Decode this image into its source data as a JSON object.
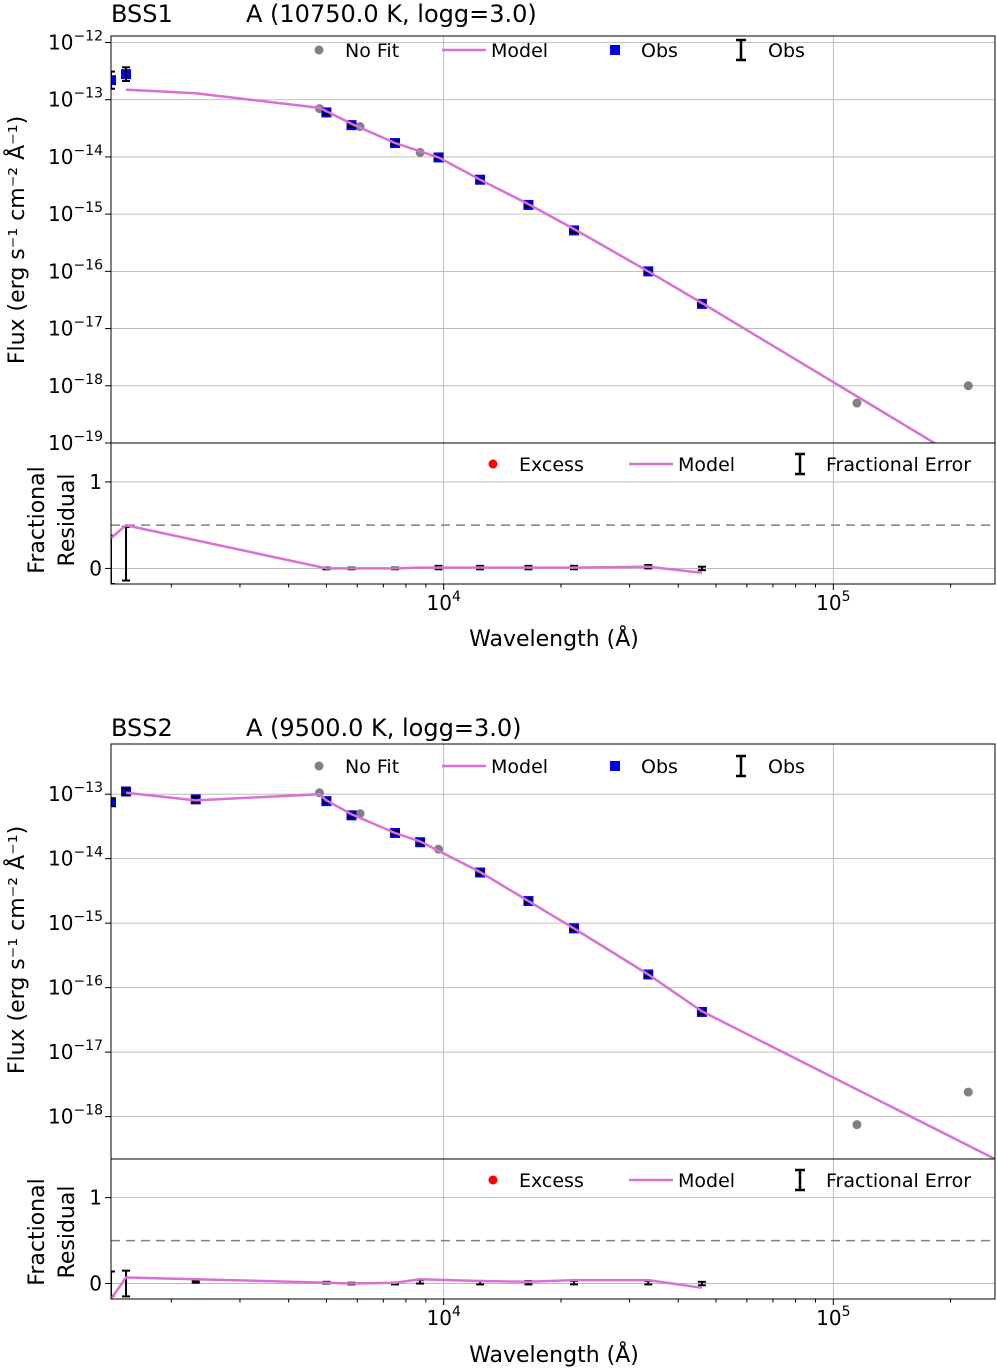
{
  "chart_data": [
    {
      "type": "scatter",
      "title_left": "BSS1",
      "title_right": "A (10750.0 K, logg=3.0)",
      "ylabel_top": "Flux (erg s⁻¹ cm⁻² Å⁻¹)",
      "ylabel_bottom_line1": "Fractional",
      "ylabel_bottom_line2": "Residual",
      "xlabel": "Wavelength (Å)",
      "x_scale": "log",
      "xlim": [
        1400,
        260000
      ],
      "xticks": [
        {
          "v": 10000,
          "exp": "4"
        },
        {
          "v": 100000,
          "exp": "5"
        }
      ],
      "top_panel": {
        "y_scale": "log",
        "ylim": [
          1e-19,
          1.3e-12
        ],
        "yticks": [
          {
            "v": 1e-12,
            "exp": "−12"
          },
          {
            "v": 1e-13,
            "exp": "−13"
          },
          {
            "v": 1e-14,
            "exp": "−14"
          },
          {
            "v": 1e-15,
            "exp": "−15"
          },
          {
            "v": 1e-16,
            "exp": "−16"
          },
          {
            "v": 1e-17,
            "exp": "−17"
          },
          {
            "v": 1e-18,
            "exp": "−18"
          },
          {
            "v": 1e-19,
            "exp": "−19"
          }
        ],
        "legend": [
          "No Fit",
          "Model",
          "Obs",
          "Obs"
        ],
        "model": {
          "x": [
            1530,
            2310,
            4800,
            5000,
            5800,
            7500,
            9700,
            12400,
            16500,
            21600,
            33500,
            46000,
            260000
          ],
          "y": [
            1.5e-13,
            1.3e-13,
            7.2e-14,
            6.3e-14,
            3.8e-14,
            1.75e-14,
            9.8e-15,
            4e-15,
            1.5e-15,
            5.5e-16,
            1e-16,
            2.8e-17,
            2.3e-20
          ]
        },
        "obs": {
          "x": [
            1400,
            1530,
            5000,
            5800,
            7500,
            9700,
            12400,
            16500,
            21600,
            33500,
            46000
          ],
          "y": [
            2.2e-13,
            2.8e-13,
            6e-14,
            3.6e-14,
            1.75e-14,
            9.8e-15,
            4e-15,
            1.45e-15,
            5.2e-16,
            1e-16,
            2.7e-17
          ],
          "err": [
            0.15,
            0.12,
            0.03,
            0.03,
            0.03,
            0.03,
            0.03,
            0.03,
            0.03,
            0.03,
            0.03
          ]
        },
        "nofit": {
          "x": [
            4800,
            6100,
            8700,
            115000,
            222000
          ],
          "y": [
            7e-14,
            3.4e-14,
            1.2e-14,
            5e-19,
            1e-18
          ]
        }
      },
      "bottom_panel": {
        "ylim": [
          -0.18,
          1.45
        ],
        "yticks": [
          0,
          1
        ],
        "threshold": 0.5,
        "legend": [
          "Excess",
          "Model",
          "Fractional Error"
        ],
        "model": {
          "x": [
            1400,
            1530,
            5000,
            5800,
            7500,
            8700,
            9700,
            12400,
            16500,
            21600,
            33500,
            46000
          ],
          "y": [
            0.35,
            0.5,
            0.0,
            0.0,
            0.0,
            0.01,
            0.01,
            0.01,
            0.01,
            0.01,
            0.02,
            -0.05
          ]
        },
        "errors": {
          "x": [
            1400,
            1530,
            5000,
            5800,
            7500,
            9700,
            12400,
            16500,
            21600,
            33500,
            46000
          ],
          "y": [
            0.1,
            0.17,
            0.0,
            0.0,
            0.0,
            0.01,
            0.01,
            0.01,
            0.01,
            0.02,
            0.0
          ],
          "err": [
            0.28,
            0.31,
            0.01,
            0.01,
            0.01,
            0.02,
            0.02,
            0.02,
            0.02,
            0.02,
            0.02
          ]
        }
      }
    },
    {
      "type": "scatter",
      "title_left": "BSS2",
      "title_right": "A (9500.0 K, logg=3.0)",
      "ylabel_top": "Flux (erg s⁻¹ cm⁻² Å⁻¹)",
      "ylabel_bottom_line1": "Fractional",
      "ylabel_bottom_line2": "Residual",
      "xlabel": "Wavelength (Å)",
      "x_scale": "log",
      "xlim": [
        1400,
        260000
      ],
      "xticks": [
        {
          "v": 10000,
          "exp": "4"
        },
        {
          "v": 100000,
          "exp": "5"
        }
      ],
      "top_panel": {
        "y_scale": "log",
        "ylim": [
          2.2e-19,
          6e-13
        ],
        "yticks": [
          {
            "v": 1e-13,
            "exp": "−13"
          },
          {
            "v": 1e-14,
            "exp": "−14"
          },
          {
            "v": 1e-15,
            "exp": "−15"
          },
          {
            "v": 1e-16,
            "exp": "−16"
          },
          {
            "v": 1e-17,
            "exp": "−17"
          },
          {
            "v": 1e-18,
            "exp": "−18"
          }
        ],
        "legend": [
          "No Fit",
          "Model",
          "Obs",
          "Obs"
        ],
        "model": {
          "x": [
            1530,
            2310,
            4800,
            5000,
            5800,
            7500,
            8700,
            12400,
            16500,
            21600,
            33500,
            46000,
            260000
          ],
          "y": [
            1.05e-13,
            8e-14,
            1e-13,
            8e-14,
            4.9e-14,
            2.5e-14,
            1.85e-14,
            6.2e-15,
            2.2e-15,
            8.3e-16,
            1.6e-16,
            4.3e-17,
            2.2e-19
          ]
        },
        "obs": {
          "x": [
            1400,
            1530,
            2310,
            5000,
            5800,
            7500,
            8700,
            12400,
            16500,
            21600,
            33500,
            46000
          ],
          "y": [
            7.5e-14,
            1.1e-13,
            8.3e-14,
            7.8e-14,
            4.7e-14,
            2.5e-14,
            1.8e-14,
            6.1e-15,
            2.2e-15,
            8.3e-16,
            1.6e-16,
            4.2e-17
          ],
          "err": [
            0.06,
            0.05,
            0.04,
            0.03,
            0.03,
            0.03,
            0.03,
            0.03,
            0.03,
            0.03,
            0.03,
            0.03
          ]
        },
        "nofit": {
          "x": [
            4800,
            6100,
            9700,
            115000,
            222000
          ],
          "y": [
            1.05e-13,
            5e-14,
            1.4e-14,
            7.5e-19,
            2.4e-18
          ]
        }
      },
      "bottom_panel": {
        "ylim": [
          -0.18,
          1.45
        ],
        "yticks": [
          0,
          1
        ],
        "threshold": 0.5,
        "legend": [
          "Excess",
          "Model",
          "Fractional Error"
        ],
        "model": {
          "x": [
            1400,
            1530,
            2310,
            5000,
            5800,
            7500,
            8700,
            12400,
            16500,
            21600,
            33500,
            46000
          ],
          "y": [
            -0.18,
            0.07,
            0.05,
            0.01,
            0.0,
            0.01,
            0.05,
            0.03,
            0.02,
            0.04,
            0.04,
            -0.05
          ]
        },
        "errors": {
          "x": [
            1400,
            1530,
            2310,
            5000,
            5800,
            7500,
            8700,
            12400,
            16500,
            21600,
            33500,
            46000
          ],
          "y": [
            0.0,
            0.0,
            0.02,
            0.01,
            0.0,
            0.0,
            0.02,
            0.01,
            0.01,
            0.01,
            0.01,
            0.0
          ],
          "err": [
            0.14,
            0.15,
            0.01,
            0.01,
            0.01,
            0.01,
            0.02,
            0.02,
            0.02,
            0.02,
            0.02,
            0.02
          ]
        }
      }
    }
  ]
}
